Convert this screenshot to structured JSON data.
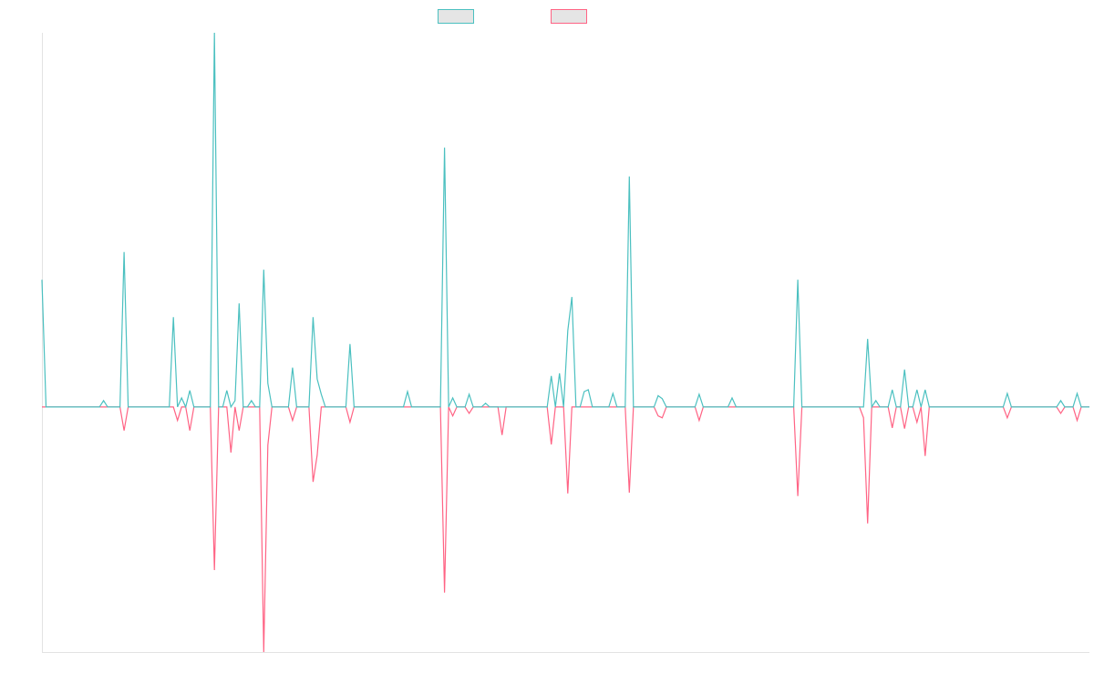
{
  "chart_data": {
    "type": "line",
    "title": "",
    "xlabel": "",
    "ylabel": "",
    "x_range": [
      0,
      255
    ],
    "ylim": [
      -6.55,
      10
    ],
    "grid": false,
    "legend_position": "top-center",
    "default_value": 0,
    "series": [
      {
        "name": "",
        "color": "#4bc0c0",
        "points": [
          [
            0,
            3.4
          ],
          [
            15,
            0.17
          ],
          [
            20,
            4.14
          ],
          [
            32,
            2.4
          ],
          [
            34,
            0.24
          ],
          [
            36,
            0.44
          ],
          [
            42,
            10
          ],
          [
            45,
            0.44
          ],
          [
            47,
            0.17
          ],
          [
            48,
            2.77
          ],
          [
            51,
            0.17
          ],
          [
            54,
            3.67
          ],
          [
            55,
            0.63
          ],
          [
            61,
            1.05
          ],
          [
            66,
            2.4
          ],
          [
            67,
            0.75
          ],
          [
            68,
            0.34
          ],
          [
            75,
            1.68
          ],
          [
            89,
            0.41
          ],
          [
            98,
            6.93
          ],
          [
            100,
            0.24
          ],
          [
            104,
            0.34
          ],
          [
            108,
            0.1
          ],
          [
            124,
            0.83
          ],
          [
            126,
            0.9
          ],
          [
            128,
            2.04
          ],
          [
            129,
            2.94
          ],
          [
            132,
            0.41
          ],
          [
            133,
            0.46
          ],
          [
            139,
            0.36
          ],
          [
            143,
            6.16
          ],
          [
            150,
            0.3
          ],
          [
            151,
            0.22
          ],
          [
            160,
            0.34
          ],
          [
            168,
            0.24
          ],
          [
            184,
            3.4
          ],
          [
            201,
            1.82
          ],
          [
            203,
            0.17
          ],
          [
            207,
            0.46
          ],
          [
            210,
            1.0
          ],
          [
            213,
            0.46
          ],
          [
            215,
            0.46
          ],
          [
            235,
            0.36
          ],
          [
            248,
            0.17
          ],
          [
            252,
            0.36
          ]
        ]
      },
      {
        "name": "",
        "color": "#ff6384",
        "points": [
          [
            20,
            -0.63
          ],
          [
            33,
            -0.36
          ],
          [
            36,
            -0.63
          ],
          [
            42,
            -4.36
          ],
          [
            46,
            -1.22
          ],
          [
            48,
            -0.63
          ],
          [
            54,
            -6.55
          ],
          [
            55,
            -1.02
          ],
          [
            61,
            -0.36
          ],
          [
            66,
            -2.0
          ],
          [
            67,
            -1.29
          ],
          [
            75,
            -0.41
          ],
          [
            98,
            -4.96
          ],
          [
            100,
            -0.24
          ],
          [
            104,
            -0.17
          ],
          [
            112,
            -0.75
          ],
          [
            124,
            -1.0
          ],
          [
            128,
            -2.31
          ],
          [
            143,
            -2.29
          ],
          [
            150,
            -0.24
          ],
          [
            151,
            -0.29
          ],
          [
            160,
            -0.36
          ],
          [
            184,
            -2.38
          ],
          [
            200,
            -0.29
          ],
          [
            201,
            -3.11
          ],
          [
            207,
            -0.56
          ],
          [
            210,
            -0.58
          ],
          [
            213,
            -0.41
          ],
          [
            215,
            -1.31
          ],
          [
            235,
            -0.29
          ],
          [
            248,
            -0.17
          ],
          [
            252,
            -0.36
          ]
        ]
      }
    ]
  }
}
